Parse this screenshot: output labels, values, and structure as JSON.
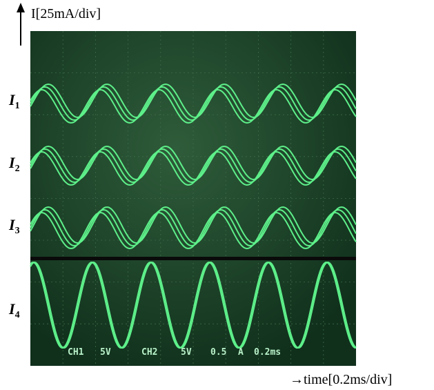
{
  "y_axis_label": "I[25mA/div]",
  "x_axis_label": "→time[0.2ms/div]",
  "traces": [
    {
      "symbol": "I",
      "subscript": "1"
    },
    {
      "symbol": "I",
      "subscript": "2"
    },
    {
      "symbol": "I",
      "subscript": "3"
    },
    {
      "symbol": "I",
      "subscript": "4"
    }
  ],
  "readout": [
    "CH1",
    "5V",
    "CH2",
    "5V",
    "0.5",
    "A",
    "0.2ms"
  ]
}
